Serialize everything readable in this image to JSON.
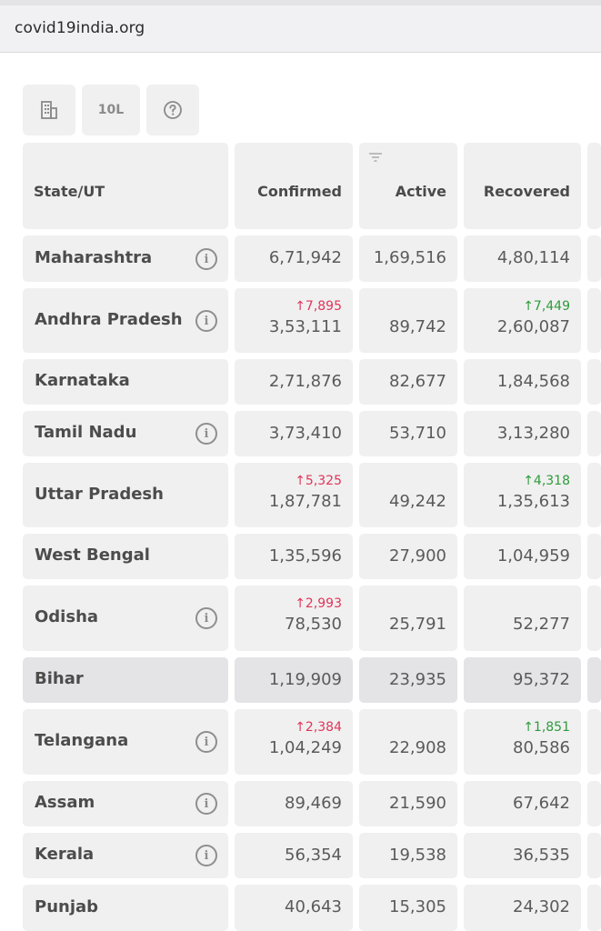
{
  "browser": {
    "url": "covid19india.org"
  },
  "toolbar": {
    "buttons": [
      {
        "icon": "building-icon"
      },
      {
        "label": "10L"
      },
      {
        "icon": "help-circle-icon"
      }
    ]
  },
  "table": {
    "headers": {
      "state": "State/UT",
      "confirmed": "Confirmed",
      "active": "Active",
      "recovered": "Recovered"
    },
    "rows": [
      {
        "state": "Maharashtra",
        "info": true,
        "confirmed": "6,71,942",
        "confirmed_delta": "",
        "active": "1,69,516",
        "recovered": "4,80,114",
        "recovered_delta": ""
      },
      {
        "state": "Andhra Pradesh",
        "info": true,
        "confirmed": "3,53,111",
        "confirmed_delta": "↑7,895",
        "active": "89,742",
        "recovered": "2,60,087",
        "recovered_delta": "↑7,449"
      },
      {
        "state": "Karnataka",
        "info": false,
        "confirmed": "2,71,876",
        "confirmed_delta": "",
        "active": "82,677",
        "recovered": "1,84,568",
        "recovered_delta": ""
      },
      {
        "state": "Tamil Nadu",
        "info": true,
        "confirmed": "3,73,410",
        "confirmed_delta": "",
        "active": "53,710",
        "recovered": "3,13,280",
        "recovered_delta": ""
      },
      {
        "state": "Uttar Pradesh",
        "info": false,
        "confirmed": "1,87,781",
        "confirmed_delta": "↑5,325",
        "active": "49,242",
        "recovered": "1,35,613",
        "recovered_delta": "↑4,318"
      },
      {
        "state": "West Bengal",
        "info": false,
        "confirmed": "1,35,596",
        "confirmed_delta": "",
        "active": "27,900",
        "recovered": "1,04,959",
        "recovered_delta": ""
      },
      {
        "state": "Odisha",
        "info": true,
        "confirmed": "78,530",
        "confirmed_delta": "↑2,993",
        "active": "25,791",
        "recovered": "52,277",
        "recovered_delta": ""
      },
      {
        "state": "Bihar",
        "info": false,
        "confirmed": "1,19,909",
        "confirmed_delta": "",
        "active": "23,935",
        "recovered": "95,372",
        "recovered_delta": ""
      },
      {
        "state": "Telangana",
        "info": true,
        "confirmed": "1,04,249",
        "confirmed_delta": "↑2,384",
        "active": "22,908",
        "recovered": "80,586",
        "recovered_delta": "↑1,851"
      },
      {
        "state": "Assam",
        "info": true,
        "confirmed": "89,469",
        "confirmed_delta": "",
        "active": "21,590",
        "recovered": "67,642",
        "recovered_delta": ""
      },
      {
        "state": "Kerala",
        "info": true,
        "confirmed": "56,354",
        "confirmed_delta": "",
        "active": "19,538",
        "recovered": "36,535",
        "recovered_delta": ""
      },
      {
        "state": "Punjab",
        "info": false,
        "confirmed": "40,643",
        "confirmed_delta": "",
        "active": "15,305",
        "recovered": "24,302",
        "recovered_delta": ""
      }
    ]
  },
  "colors": {
    "increase_confirmed": "#e0355a",
    "increase_recovered": "#2e9b3c",
    "row_highlight": "#e4e4e7"
  }
}
